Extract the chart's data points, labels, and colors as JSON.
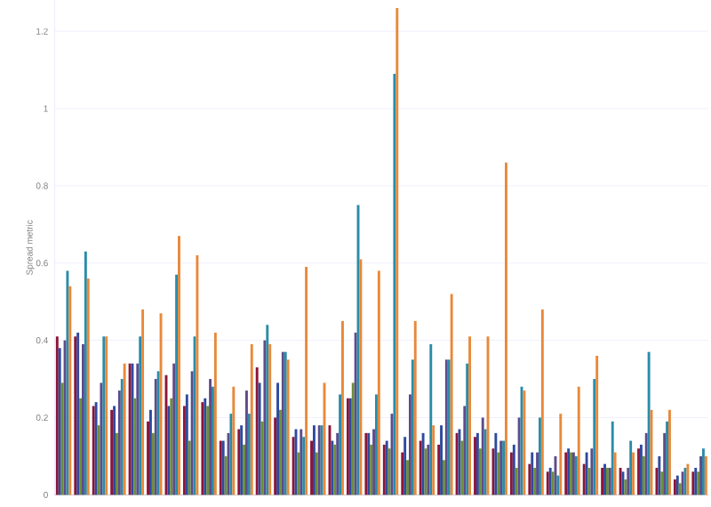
{
  "chart_data": {
    "type": "bar",
    "ylabel": "Spread metric",
    "categories": [
      null,
      null,
      null,
      null,
      null,
      null,
      null,
      null,
      null,
      null,
      null,
      null,
      null,
      null,
      null,
      null,
      null,
      null,
      null,
      null,
      null,
      null,
      null,
      null,
      null,
      null,
      null,
      null,
      null,
      null,
      null,
      null,
      null,
      null,
      null,
      null
    ],
    "ylim": [
      0,
      1.28
    ],
    "yticks": [
      0,
      0.2,
      0.4,
      0.6,
      0.8,
      1,
      1.2
    ],
    "grid": "y",
    "tick_labels": "y",
    "series": [
      {
        "color": "#8b1538",
        "values": [
          0.41,
          0.41,
          0.23,
          0.22,
          0.34,
          0.19,
          0.31,
          0.23,
          0.24,
          0.14,
          0.17,
          0.33,
          0.2,
          0.15,
          0.14,
          0.18,
          0.25,
          0.16,
          0.13,
          0.11,
          0.14,
          0.13,
          0.16,
          0.15,
          0.12,
          0.11,
          0.08,
          0.06,
          0.11,
          0.08,
          0.07,
          0.07,
          0.12,
          0.07,
          0.04,
          0.06
        ]
      },
      {
        "color": "#2e4a9e",
        "values": [
          0.38,
          0.42,
          0.24,
          0.23,
          0.34,
          0.22,
          0.23,
          0.26,
          0.25,
          0.14,
          0.18,
          0.29,
          0.29,
          0.17,
          0.18,
          0.14,
          0.25,
          0.16,
          0.14,
          0.15,
          0.16,
          0.18,
          0.17,
          0.16,
          0.16,
          0.13,
          0.11,
          0.07,
          0.12,
          0.11,
          0.08,
          0.06,
          0.13,
          0.1,
          0.05,
          0.07
        ]
      },
      {
        "color": "#6b8e3a",
        "values": [
          0.29,
          0.25,
          0.18,
          0.16,
          0.25,
          0.16,
          0.25,
          0.14,
          0.23,
          0.1,
          0.13,
          0.19,
          0.22,
          0.11,
          0.11,
          0.13,
          0.29,
          0.13,
          0.12,
          0.09,
          0.12,
          0.09,
          0.14,
          0.12,
          0.11,
          0.07,
          0.07,
          0.06,
          0.11,
          0.07,
          0.07,
          0.04,
          0.1,
          0.06,
          0.03,
          0.06
        ]
      },
      {
        "color": "#5e4b8b",
        "values": [
          0.4,
          0.39,
          0.29,
          0.27,
          0.34,
          0.3,
          0.34,
          0.32,
          0.3,
          0.16,
          0.27,
          0.4,
          0.37,
          0.17,
          0.18,
          0.16,
          0.42,
          0.17,
          0.21,
          0.26,
          0.13,
          0.35,
          0.23,
          0.2,
          0.14,
          0.2,
          0.11,
          0.1,
          0.11,
          0.12,
          0.07,
          0.07,
          0.16,
          0.16,
          0.06,
          0.1
        ]
      },
      {
        "color": "#2a8ca8",
        "values": [
          0.58,
          0.63,
          0.41,
          0.3,
          0.41,
          0.32,
          0.57,
          0.41,
          0.28,
          0.21,
          0.21,
          0.44,
          0.37,
          0.15,
          0.18,
          0.26,
          0.75,
          0.26,
          1.09,
          0.35,
          0.39,
          0.35,
          0.34,
          0.17,
          0.14,
          0.28,
          0.2,
          0.05,
          0.1,
          0.3,
          0.19,
          0.14,
          0.37,
          0.19,
          0.07,
          0.12
        ]
      },
      {
        "color": "#e8893a",
        "values": [
          0.54,
          0.56,
          0.41,
          0.34,
          0.48,
          0.47,
          0.67,
          0.62,
          0.42,
          0.28,
          0.39,
          0.39,
          0.35,
          0.59,
          0.29,
          0.45,
          0.61,
          0.58,
          1.26,
          0.45,
          0.18,
          0.52,
          0.41,
          0.41,
          0.86,
          0.27,
          0.48,
          0.21,
          0.28,
          0.36,
          0.11,
          0.11,
          0.22,
          0.22,
          0.08,
          0.1
        ]
      }
    ]
  }
}
